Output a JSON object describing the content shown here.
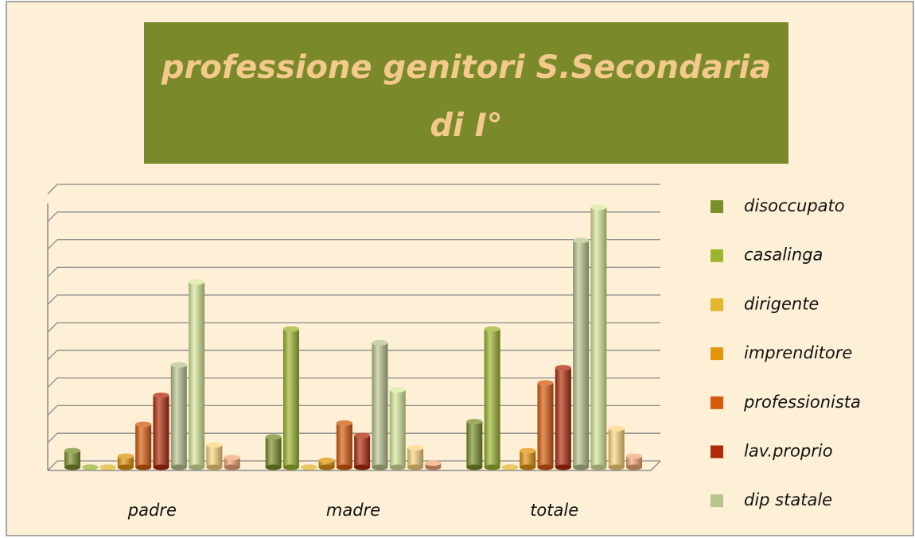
{
  "chart_data": {
    "type": "bar3d",
    "title": [
      "professione genitori S.Secondaria",
      "di I°"
    ],
    "categories": [
      "padre",
      "madre",
      "totale"
    ],
    "ylim": [
      0,
      10
    ],
    "yticks": [
      0,
      1,
      2,
      3,
      4,
      5,
      6,
      7,
      8,
      9,
      10
    ],
    "grid": true,
    "legend": "right",
    "series": [
      {
        "name": "disoccupato",
        "color": "#7a8f2a",
        "values": [
          0.6,
          1.1,
          1.65
        ]
      },
      {
        "name": "casalinga",
        "color": "#9bb52e",
        "values": [
          0,
          5.0,
          5.0
        ]
      },
      {
        "name": "dirigente",
        "color": "#e2b52a",
        "values": [
          0,
          0,
          0
        ]
      },
      {
        "name": "imprenditore",
        "color": "#e3950b",
        "values": [
          0.4,
          0.25,
          0.6
        ]
      },
      {
        "name": "professionista",
        "color": "#d65a0c",
        "values": [
          1.55,
          1.6,
          3.05
        ]
      },
      {
        "name": "lav.proprio",
        "color": "#b02a0a",
        "values": [
          2.6,
          1.15,
          3.6
        ]
      },
      {
        "name": "dip statale",
        "color": "#b8c48e",
        "values": [
          3.7,
          4.5,
          8.2
        ]
      },
      {
        "color": "#d8e89a",
        "values": [
          6.7,
          2.8,
          9.4
        ]
      },
      {
        "color": "#fcd57a",
        "values": [
          0.8,
          0.7,
          1.4
        ]
      },
      {
        "color": "#f4a878",
        "values": [
          0.35,
          0.15,
          0.4
        ]
      }
    ]
  }
}
